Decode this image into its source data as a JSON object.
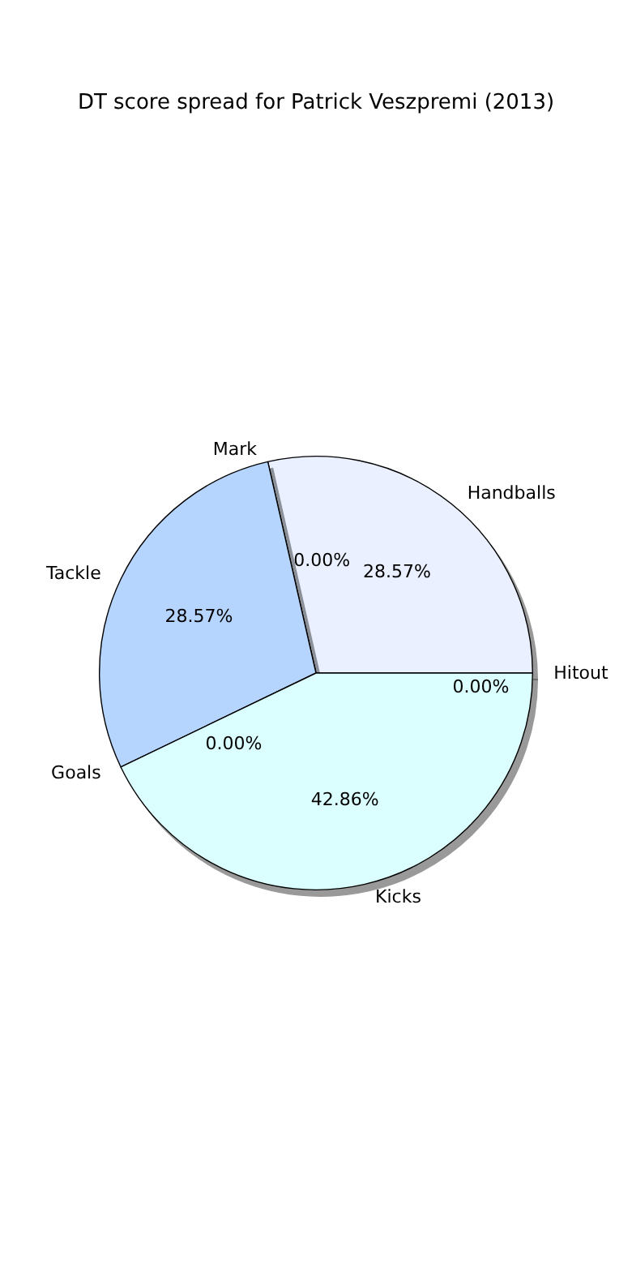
{
  "chart_data": {
    "type": "pie",
    "title": "DT score spread for Patrick Veszpremi (2013)",
    "categories": [
      "Handballs",
      "Mark",
      "Tackle",
      "Goals",
      "Kicks",
      "Hitout"
    ],
    "values": [
      28.57,
      0,
      28.57,
      0,
      42.86,
      0
    ],
    "value_labels": [
      "28.57%",
      "0.00%",
      "28.57%",
      "0.00%",
      "42.86%",
      "0.00%"
    ],
    "colors": [
      "#eaf0ff",
      "#d6e4ff",
      "#b5d5ff",
      "#c8ecff",
      "#dbffff",
      "#e6f7ff"
    ]
  }
}
